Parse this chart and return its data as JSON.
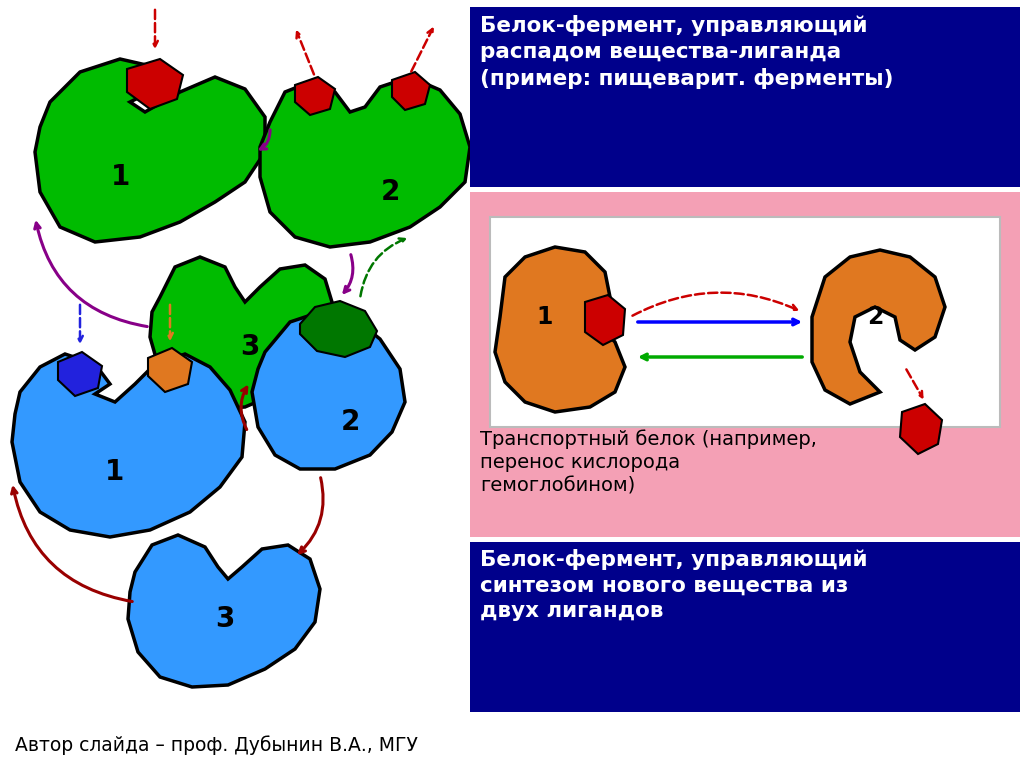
{
  "bg_color": "#ffffff",
  "title_box1_bg": "#00008B",
  "title_box1_text": "Белок-фермент, управляющий\nраспадом вещества-лиганда\n(пример: пищеварит. ферменты)",
  "title_box1_text_color": "#ffffff",
  "pink_box_bg": "#F4A0B5",
  "transport_label": "Транспортный белок (например,\nперенос кислорода\nгемоглобином)",
  "transport_label_color": "#000000",
  "title_box2_bg": "#00008B",
  "title_box2_text": "Белок-фермент, управляющий\nсинтезом нового вещества из\nдвух лигандов",
  "title_box2_text_color": "#ffffff",
  "footer_text": "Автор слайда – проф. Дубынин В.А., МГУ",
  "footer_color": "#000000",
  "green_color": "#00BB00",
  "blue_color": "#3399FF",
  "orange_color": "#E07820",
  "red_color": "#CC0000",
  "dark_red_color": "#990000",
  "purple_color": "#880088",
  "dark_green_color": "#007700"
}
